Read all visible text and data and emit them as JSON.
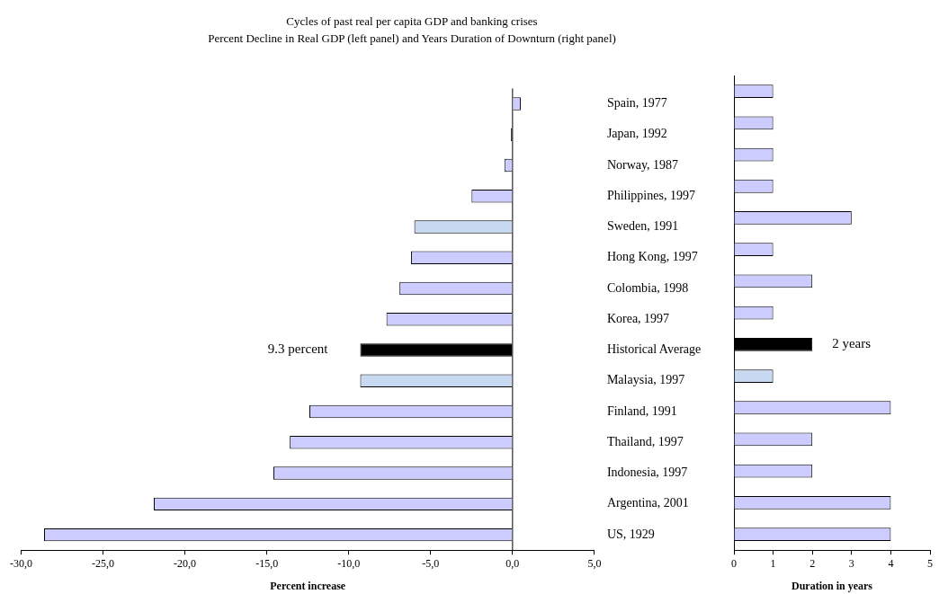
{
  "chart_data": [
    {
      "type": "bar",
      "orientation": "horizontal",
      "title": "Cycles of past real per capita GDP and banking crises",
      "subtitle": "Percent Decline in Real GDP (left panel) and Years Duration of Downturn (right panel)",
      "xlabel": "Percent increase",
      "categories": [
        "Spain, 1977",
        "Japan, 1992",
        "Norway, 1987",
        "Philippines, 1997",
        "Sweden, 1991",
        "Hong Kong, 1997",
        "Colombia, 1998",
        "Korea, 1997",
        "Historical Average",
        "Malaysia, 1997",
        "Finland, 1991",
        "Thailand, 1997",
        "Indonesia, 1997",
        "Argentina, 2001",
        "US, 1929"
      ],
      "values": [
        0.5,
        -0.1,
        -0.5,
        -2.5,
        -6.0,
        -6.2,
        -6.9,
        -7.7,
        -9.3,
        -9.3,
        -12.4,
        -13.6,
        -14.6,
        -21.9,
        -28.6
      ],
      "colors": [
        "#ccccff",
        "#000000",
        "#ccccff",
        "#ccccff",
        "#c6d9f0",
        "#ccccff",
        "#ccccff",
        "#ccccff",
        "#000000",
        "#c6d9f0",
        "#ccccff",
        "#ccccff",
        "#ccccff",
        "#ccccff",
        "#ccccff"
      ],
      "xlim": [
        -30,
        5
      ],
      "xticks": [
        {
          "value": -30,
          "label": "-30,0"
        },
        {
          "value": -25,
          "label": "-25,0"
        },
        {
          "value": -20,
          "label": "-20,0"
        },
        {
          "value": -15,
          "label": "-15,0"
        },
        {
          "value": -10,
          "label": "-10,0"
        },
        {
          "value": -5,
          "label": "-5,0"
        },
        {
          "value": 0,
          "label": "0,0"
        },
        {
          "value": 5,
          "label": "5,0"
        }
      ],
      "annotations": [
        {
          "text": "9.3 percent",
          "x": -9.3,
          "y": "Historical Average"
        }
      ]
    },
    {
      "type": "bar",
      "orientation": "horizontal",
      "xlabel": "Duration in years",
      "categories": [
        "Spain, 1977",
        "Japan, 1992",
        "Norway, 1987",
        "Philippines, 1997",
        "Sweden, 1991",
        "Hong Kong, 1997",
        "Colombia, 1998",
        "Korea, 1997",
        "Historical Average",
        "Malaysia, 1997",
        "Finland, 1991",
        "Thailand, 1997",
        "Indonesia, 1997",
        "Argentina, 2001",
        "US, 1929"
      ],
      "values": [
        1,
        1,
        1,
        1,
        3,
        1,
        2,
        1,
        2,
        1,
        4,
        2,
        2,
        4,
        4
      ],
      "colors": [
        "#ccccff",
        "#ccccff",
        "#ccccff",
        "#ccccff",
        "#ccccff",
        "#ccccff",
        "#ccccff",
        "#ccccff",
        "#000000",
        "#c6d9f0",
        "#ccccff",
        "#ccccff",
        "#ccccff",
        "#ccccff",
        "#ccccff"
      ],
      "xlim": [
        0,
        5
      ],
      "xticks": [
        0,
        1,
        2,
        3,
        4,
        5
      ],
      "tick_labels": "x",
      "annotations": [
        {
          "text": "2 years",
          "x": 2,
          "y": "Historical Average"
        }
      ]
    }
  ]
}
